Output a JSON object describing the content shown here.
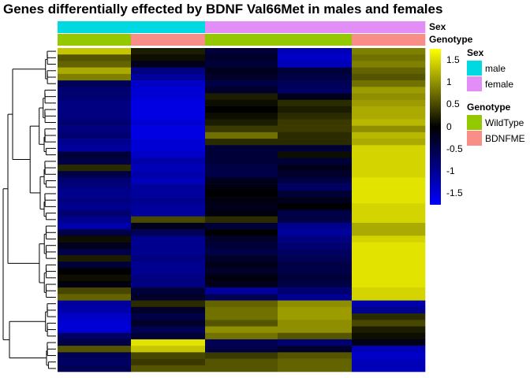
{
  "chart_data": {
    "type": "heatmap",
    "title": "Genes differentially effected by BDNF Val66Met in males and females",
    "annotation_tracks": [
      {
        "name": "Sex",
        "blocks": [
          "male",
          "male",
          "female",
          "female",
          "female"
        ]
      },
      {
        "name": "Genotype",
        "blocks": [
          "WildType",
          "BDNFMET",
          "WildType",
          "WildType",
          "BDNFMET"
        ]
      }
    ],
    "column_groups": [
      "male WildType",
      "male BDNFMET",
      "female WildType",
      "female WildType",
      "female BDNFMET"
    ],
    "n_rows": 50,
    "values": [
      [
        1.4,
        0.2,
        -0.4,
        -1.3,
        0.9
      ],
      [
        0.6,
        0.1,
        -0.3,
        -1.4,
        0.8
      ],
      [
        0.7,
        -0.2,
        -0.4,
        -1.3,
        0.9
      ],
      [
        1.2,
        -0.9,
        -0.2,
        -0.4,
        0.7
      ],
      [
        0.9,
        -1.1,
        -0.3,
        -0.5,
        0.6
      ],
      [
        -0.6,
        -1.4,
        -0.5,
        -0.6,
        0.8
      ],
      [
        -0.8,
        -1.5,
        -0.3,
        -0.7,
        1.1
      ],
      [
        -0.8,
        -1.5,
        0.2,
        -0.2,
        1.0
      ],
      [
        -0.9,
        -1.6,
        0.1,
        0.3,
        1.1
      ],
      [
        -0.9,
        -1.6,
        0.0,
        0.2,
        1.2
      ],
      [
        -0.9,
        -1.6,
        0.1,
        0.3,
        1.2
      ],
      [
        -0.8,
        -1.5,
        0.2,
        0.4,
        1.3
      ],
      [
        -0.9,
        -1.6,
        0.4,
        0.4,
        1.0
      ],
      [
        -0.8,
        -1.6,
        0.8,
        0.3,
        1.3
      ],
      [
        -1.0,
        -1.5,
        0.3,
        0.3,
        1.2
      ],
      [
        -1.1,
        -1.5,
        -0.4,
        -0.4,
        1.5
      ],
      [
        -0.4,
        -1.4,
        -0.4,
        0.1,
        1.5
      ],
      [
        -0.5,
        -1.2,
        -0.4,
        -0.4,
        1.5
      ],
      [
        0.3,
        -1.3,
        -0.5,
        -0.2,
        1.5
      ],
      [
        -0.5,
        -1.2,
        -0.5,
        -0.3,
        1.5
      ],
      [
        -0.8,
        -1.3,
        -0.2,
        -0.5,
        1.6
      ],
      [
        -0.9,
        -1.1,
        -0.1,
        -0.7,
        1.6
      ],
      [
        -1.0,
        -1.1,
        0.0,
        -0.4,
        1.6
      ],
      [
        -0.9,
        -1.0,
        -0.1,
        -0.2,
        1.6
      ],
      [
        -1.0,
        -1.1,
        -0.2,
        0.0,
        1.5
      ],
      [
        -0.8,
        -1.1,
        -0.1,
        -0.5,
        1.5
      ],
      [
        -1.0,
        0.5,
        0.3,
        -0.5,
        1.5
      ],
      [
        -1.2,
        -0.2,
        -0.4,
        -1.0,
        1.2
      ],
      [
        -0.5,
        -0.6,
        0.0,
        -1.1,
        1.2
      ],
      [
        0.1,
        -1.0,
        -0.3,
        -0.9,
        1.5
      ],
      [
        -0.2,
        -1.0,
        -0.4,
        -0.8,
        1.6
      ],
      [
        -0.5,
        -1.0,
        -0.5,
        -0.7,
        1.6
      ],
      [
        0.2,
        -0.9,
        -0.3,
        -0.6,
        1.6
      ],
      [
        -0.4,
        -1.0,
        -0.2,
        -0.5,
        1.6
      ],
      [
        0.0,
        -1.0,
        -0.3,
        -0.5,
        1.6
      ],
      [
        0.1,
        -0.9,
        -0.1,
        -0.4,
        1.6
      ],
      [
        -0.1,
        -0.9,
        -0.2,
        -0.5,
        1.6
      ],
      [
        0.5,
        -0.4,
        -1.1,
        -0.8,
        1.5
      ],
      [
        0.7,
        -0.3,
        -0.6,
        -1.0,
        1.5
      ],
      [
        -1.1,
        0.3,
        0.7,
        1.0,
        -1.2
      ],
      [
        -1.2,
        -0.3,
        0.8,
        1.1,
        -1.0
      ],
      [
        -1.4,
        -0.5,
        0.8,
        1.1,
        0.3
      ],
      [
        -1.5,
        -0.3,
        0.6,
        1.0,
        0.5
      ],
      [
        -1.5,
        -0.6,
        1.0,
        1.0,
        0.2
      ],
      [
        -0.7,
        -0.4,
        0.8,
        0.6,
        0.1
      ],
      [
        -0.5,
        1.6,
        -0.6,
        -0.8,
        -0.2
      ],
      [
        0.6,
        1.4,
        -0.5,
        -0.3,
        -1.3
      ],
      [
        -0.6,
        0.5,
        0.4,
        0.6,
        -1.4
      ],
      [
        -0.7,
        0.4,
        0.6,
        0.7,
        -1.3
      ],
      [
        -0.6,
        0.6,
        0.6,
        0.7,
        -1.3
      ]
    ],
    "color_scale": {
      "low": "#0000ff",
      "mid": "#000000",
      "high": "#ffff00",
      "min": -1.8,
      "max": 1.8
    },
    "colorbar_ticks": [
      "1.5",
      "1",
      "0.5",
      "0",
      "-0.5",
      "-1",
      "-1.5"
    ],
    "legends": [
      {
        "title": "Sex",
        "items": [
          {
            "label": "male",
            "color": "#00d9e1"
          },
          {
            "label": "female",
            "color": "#e28ef6"
          }
        ]
      },
      {
        "title": "Genotype",
        "items": [
          {
            "label": "WildType",
            "color": "#94c800"
          },
          {
            "label": "BDNFME",
            "color": "#f98d87"
          }
        ]
      }
    ],
    "dendrogram": "row dendrogram (hierarchical clustering of genes)"
  }
}
